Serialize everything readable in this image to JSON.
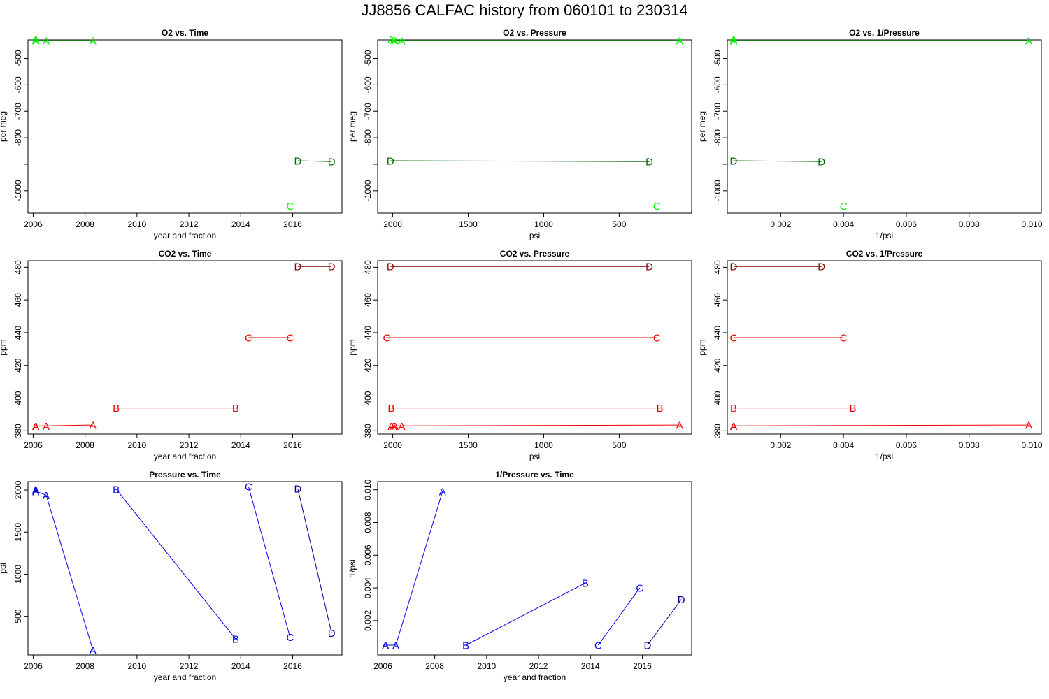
{
  "page_title": "JJ8856   CALFAC history from  060101  to  230314",
  "colors": {
    "o2_light": "#00ee00",
    "o2_dark": "#006400",
    "co2_light": "#ee0000",
    "co2_dark": "#8b0000",
    "pressure_light": "#0000ee",
    "pressure_dark": "#00008b"
  },
  "chart_data": [
    {
      "type": "line",
      "title": "O2 vs. Time",
      "xlabel": "year and fraction",
      "ylabel": "per meg",
      "xlim": [
        2005.8,
        2017.9
      ],
      "ylim": [
        -1085,
        -430
      ],
      "xticks": [
        2006,
        2008,
        2010,
        2012,
        2014,
        2016
      ],
      "yticks": [
        -1000,
        -900,
        -800,
        -700,
        -600,
        -500
      ],
      "ytick_labels": [
        "-1000",
        "",
        "-800",
        "-700",
        "-600",
        "-500"
      ],
      "series": [
        {
          "name": "A",
          "color": "#00ee00",
          "connect": true,
          "points": [
            [
              2006.1,
              -428
            ],
            [
              2006.1,
              -431
            ],
            [
              2006.1,
              -432
            ],
            [
              2006.5,
              -433
            ],
            [
              2008.3,
              -433
            ]
          ]
        },
        {
          "name": "C",
          "color": "#00ee00",
          "connect": true,
          "points": [
            [
              2015.9,
              -1057
            ]
          ]
        },
        {
          "name": "D",
          "color": "#006400",
          "connect": true,
          "points": [
            [
              2016.2,
              -887
            ],
            [
              2017.5,
              -890
            ]
          ]
        }
      ]
    },
    {
      "type": "line",
      "title": "O2 vs. Pressure",
      "xlabel": "psi",
      "ylabel": "per meg",
      "xlim": [
        2100,
        20
      ],
      "ylim": [
        -1085,
        -430
      ],
      "xticks": [
        2000,
        1500,
        1000,
        500
      ],
      "yticks": [
        -1000,
        -900,
        -800,
        -700,
        -600,
        -500
      ],
      "ytick_labels": [
        "-1000",
        "",
        "-800",
        "-700",
        "-600",
        "-500"
      ],
      "series": [
        {
          "name": "A",
          "color": "#00ee00",
          "connect": true,
          "points": [
            [
              2010,
              -428
            ],
            [
              1995,
              -431
            ],
            [
              1985,
              -432
            ],
            [
              1940,
              -433
            ],
            [
              100,
              -433
            ]
          ]
        },
        {
          "name": "C",
          "color": "#00ee00",
          "connect": true,
          "points": [
            [
              250,
              -1057
            ]
          ]
        },
        {
          "name": "D",
          "color": "#006400",
          "connect": true,
          "points": [
            [
              2015,
              -887
            ],
            [
              300,
              -890
            ]
          ]
        }
      ]
    },
    {
      "type": "line",
      "title": "O2 vs. 1/Pressure",
      "xlabel": "1/psi",
      "ylabel": "per meg",
      "xlim": [
        0.0003,
        0.0103
      ],
      "ylim": [
        -1085,
        -430
      ],
      "xticks": [
        0.002,
        0.004,
        0.006,
        0.008,
        0.01
      ],
      "xtick_labels": [
        "0.002",
        "0.004",
        "0.006",
        "0.008",
        "0.010"
      ],
      "yticks": [
        -1000,
        -900,
        -800,
        -700,
        -600,
        -500
      ],
      "ytick_labels": [
        "-1000",
        "",
        "-800",
        "-700",
        "-600",
        "-500"
      ],
      "series": [
        {
          "name": "A",
          "color": "#00ee00",
          "connect": true,
          "points": [
            [
              0.0005,
              -428
            ],
            [
              0.0005,
              -431
            ],
            [
              0.0005,
              -432
            ],
            [
              0.0005,
              -433
            ],
            [
              0.0099,
              -433
            ]
          ]
        },
        {
          "name": "C",
          "color": "#00ee00",
          "connect": true,
          "points": [
            [
              0.004,
              -1057
            ]
          ]
        },
        {
          "name": "D",
          "color": "#006400",
          "connect": true,
          "points": [
            [
              0.0005,
              -887
            ],
            [
              0.0033,
              -890
            ]
          ]
        }
      ]
    },
    {
      "type": "line",
      "title": "CO2 vs. Time",
      "xlabel": "year and fraction",
      "ylabel": "ppm",
      "xlim": [
        2005.8,
        2017.9
      ],
      "ylim": [
        378,
        484
      ],
      "xticks": [
        2006,
        2008,
        2010,
        2012,
        2014,
        2016
      ],
      "yticks": [
        380,
        400,
        420,
        440,
        460,
        480
      ],
      "series": [
        {
          "name": "A",
          "color": "#ee0000",
          "connect": true,
          "points": [
            [
              2006.1,
              383
            ],
            [
              2006.1,
              383
            ],
            [
              2006.1,
              383
            ],
            [
              2006.5,
              383
            ],
            [
              2008.3,
              383.5
            ]
          ]
        },
        {
          "name": "B",
          "color": "#ee0000",
          "connect": true,
          "points": [
            [
              2009.2,
              394
            ],
            [
              2013.8,
              394
            ]
          ]
        },
        {
          "name": "C",
          "color": "#ee0000",
          "connect": true,
          "points": [
            [
              2014.3,
              437
            ],
            [
              2015.9,
              437
            ]
          ]
        },
        {
          "name": "D",
          "color": "#8b0000",
          "connect": true,
          "points": [
            [
              2016.2,
              480.5
            ],
            [
              2017.5,
              480.5
            ]
          ]
        }
      ]
    },
    {
      "type": "line",
      "title": "CO2 vs. Pressure",
      "xlabel": "psi",
      "ylabel": "ppm",
      "xlim": [
        2100,
        20
      ],
      "ylim": [
        378,
        484
      ],
      "xticks": [
        2000,
        1500,
        1000,
        500
      ],
      "yticks": [
        380,
        400,
        420,
        440,
        460,
        480
      ],
      "series": [
        {
          "name": "A",
          "color": "#ee0000",
          "connect": true,
          "points": [
            [
              2010,
              383
            ],
            [
              1995,
              383
            ],
            [
              1985,
              383
            ],
            [
              1940,
              383
            ],
            [
              100,
              383.5
            ]
          ]
        },
        {
          "name": "B",
          "color": "#ee0000",
          "connect": true,
          "points": [
            [
              2010,
              394
            ],
            [
              230,
              394
            ]
          ]
        },
        {
          "name": "C",
          "color": "#ee0000",
          "connect": true,
          "points": [
            [
              2040,
              437
            ],
            [
              250,
              437
            ]
          ]
        },
        {
          "name": "D",
          "color": "#8b0000",
          "connect": true,
          "points": [
            [
              2015,
              480.5
            ],
            [
              300,
              480.5
            ]
          ]
        }
      ]
    },
    {
      "type": "line",
      "title": "CO2 vs. 1/Pressure",
      "xlabel": "1/psi",
      "ylabel": "ppm",
      "xlim": [
        0.0003,
        0.0103
      ],
      "ylim": [
        378,
        484
      ],
      "xticks": [
        0.002,
        0.004,
        0.006,
        0.008,
        0.01
      ],
      "xtick_labels": [
        "0.002",
        "0.004",
        "0.006",
        "0.008",
        "0.010"
      ],
      "yticks": [
        380,
        400,
        420,
        440,
        460,
        480
      ],
      "series": [
        {
          "name": "A",
          "color": "#ee0000",
          "connect": true,
          "points": [
            [
              0.0005,
              383
            ],
            [
              0.0005,
              383
            ],
            [
              0.0005,
              383
            ],
            [
              0.0005,
              383
            ],
            [
              0.0099,
              383.5
            ]
          ]
        },
        {
          "name": "B",
          "color": "#ee0000",
          "connect": true,
          "points": [
            [
              0.0005,
              394
            ],
            [
              0.0043,
              394
            ]
          ]
        },
        {
          "name": "C",
          "color": "#ee0000",
          "connect": true,
          "points": [
            [
              0.0005,
              437
            ],
            [
              0.004,
              437
            ]
          ]
        },
        {
          "name": "D",
          "color": "#8b0000",
          "connect": true,
          "points": [
            [
              0.0005,
              480.5
            ],
            [
              0.0033,
              480.5
            ]
          ]
        }
      ]
    },
    {
      "type": "line",
      "title": "Pressure vs. Time",
      "xlabel": "year and fraction",
      "ylabel": "psi",
      "xlim": [
        2005.8,
        2017.9
      ],
      "ylim": [
        40,
        2100
      ],
      "xticks": [
        2006,
        2008,
        2010,
        2012,
        2014,
        2016
      ],
      "yticks": [
        500,
        1000,
        1500,
        2000
      ],
      "series": [
        {
          "name": "A",
          "color": "#0000ee",
          "connect": true,
          "points": [
            [
              2006.1,
              2010
            ],
            [
              2006.1,
              1995
            ],
            [
              2006.1,
              1985
            ],
            [
              2006.5,
              1940
            ],
            [
              2008.3,
              100
            ]
          ]
        },
        {
          "name": "B",
          "color": "#0000ee",
          "connect": true,
          "points": [
            [
              2009.2,
              2010
            ],
            [
              2013.8,
              230
            ]
          ]
        },
        {
          "name": "C",
          "color": "#0000ee",
          "connect": true,
          "points": [
            [
              2014.3,
              2040
            ],
            [
              2015.9,
              250
            ]
          ]
        },
        {
          "name": "D",
          "color": "#00008b",
          "connect": true,
          "points": [
            [
              2016.2,
              2015
            ],
            [
              2017.5,
              300
            ]
          ]
        }
      ]
    },
    {
      "type": "line",
      "title": "1/Pressure vs. Time",
      "xlabel": "year and fraction",
      "ylabel": "1/psi",
      "xlim": [
        2005.8,
        2017.9
      ],
      "ylim": [
        -0.0001,
        0.0105
      ],
      "xticks": [
        2006,
        2008,
        2010,
        2012,
        2014,
        2016
      ],
      "yticks": [
        0.002,
        0.004,
        0.006,
        0.008,
        0.01
      ],
      "ytick_labels": [
        "0.002",
        "0.004",
        "0.006",
        "0.008",
        "0.010"
      ],
      "series": [
        {
          "name": "A",
          "color": "#0000ee",
          "connect": true,
          "points": [
            [
              2006.1,
              0.0005
            ],
            [
              2006.1,
              0.0005
            ],
            [
              2006.1,
              0.0005
            ],
            [
              2006.5,
              0.0005
            ],
            [
              2008.3,
              0.0099
            ]
          ]
        },
        {
          "name": "B",
          "color": "#0000ee",
          "connect": true,
          "points": [
            [
              2009.2,
              0.0005
            ],
            [
              2013.8,
              0.0043
            ]
          ]
        },
        {
          "name": "C",
          "color": "#0000ee",
          "connect": true,
          "points": [
            [
              2014.3,
              0.0005
            ],
            [
              2015.9,
              0.004
            ]
          ]
        },
        {
          "name": "D",
          "color": "#00008b",
          "connect": true,
          "points": [
            [
              2016.2,
              0.0005
            ],
            [
              2017.5,
              0.0033
            ]
          ]
        }
      ]
    }
  ]
}
